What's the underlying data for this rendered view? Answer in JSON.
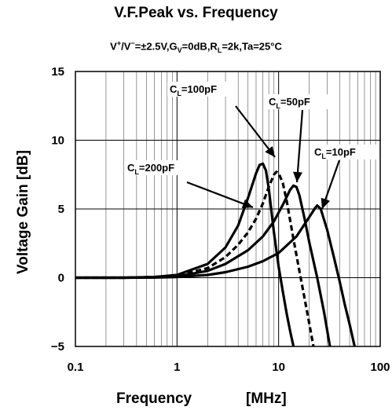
{
  "chart_data": {
    "type": "line",
    "title": "V.F.Peak vs. Frequency",
    "subtitle": "V+/V−=±2.5V,GV=0dB,RL=2k,Ta=25°C",
    "xlabel": "Frequency",
    "xunit": "[MHz]",
    "ylabel": "Voltage Gain [dB]",
    "x_scale": "log",
    "xlim": [
      0.1,
      100
    ],
    "ylim": [
      -5,
      15
    ],
    "x_ticks": [
      "0.1",
      "1",
      "10",
      "100"
    ],
    "y_ticks": [
      "15",
      "10",
      "5",
      "0",
      "−5"
    ],
    "grid": true,
    "series": [
      {
        "name": "CL=200pF",
        "style": "solid",
        "x": [
          0.1,
          0.3,
          0.6,
          1,
          2,
          3,
          4,
          5,
          6,
          6.5,
          7,
          7.5,
          8,
          9,
          10,
          11,
          12,
          13,
          14
        ],
        "y": [
          0,
          0,
          0.05,
          0.2,
          1.0,
          2.2,
          3.8,
          5.8,
          7.6,
          8.2,
          8.3,
          7.8,
          6.5,
          3.3,
          0.8,
          -1.0,
          -2.6,
          -3.9,
          -5
        ]
      },
      {
        "name": "CL=100pF",
        "style": "dashed",
        "x": [
          0.1,
          0.3,
          0.6,
          1,
          2,
          3,
          4,
          5,
          6,
          7,
          8,
          9,
          9.5,
          10,
          11,
          12,
          14,
          16,
          18,
          20,
          22
        ],
        "y": [
          0,
          0,
          0.05,
          0.15,
          0.7,
          1.5,
          2.4,
          3.3,
          4.3,
          5.4,
          6.6,
          7.5,
          7.7,
          7.6,
          6.9,
          5.6,
          2.8,
          0.5,
          -1.5,
          -3.3,
          -5
        ]
      },
      {
        "name": "CL=50pF",
        "style": "solid",
        "x": [
          0.1,
          0.3,
          0.6,
          1,
          2,
          3,
          5,
          7,
          9,
          11,
          13,
          14,
          15,
          16,
          18,
          20,
          24,
          28,
          32
        ],
        "y": [
          0,
          0,
          0.02,
          0.1,
          0.5,
          1.0,
          2.0,
          3.0,
          4.1,
          5.3,
          6.4,
          6.7,
          6.6,
          6.0,
          4.3,
          2.6,
          0.0,
          -2.5,
          -5
        ]
      },
      {
        "name": "CL=10pF",
        "style": "solid",
        "x": [
          0.1,
          0.3,
          0.6,
          1,
          2,
          3,
          5,
          7,
          10,
          15,
          20,
          23,
          24,
          26,
          30,
          35,
          40,
          45,
          50,
          56
        ],
        "y": [
          0,
          0,
          0.01,
          0.05,
          0.2,
          0.4,
          0.8,
          1.2,
          1.8,
          3.0,
          4.4,
          5.1,
          5.25,
          5.0,
          3.5,
          1.5,
          -0.3,
          -2.0,
          -3.4,
          -5
        ]
      }
    ],
    "annotations": [
      {
        "label": "CL=200pF",
        "main": "C",
        "sub": "L",
        "rest": "=200pF"
      },
      {
        "label": "CL=100pF",
        "main": "C",
        "sub": "L",
        "rest": "=100pF"
      },
      {
        "label": "CL=50pF",
        "main": "C",
        "sub": "L",
        "rest": "=50pF"
      },
      {
        "label": "CL=10pF",
        "main": "C",
        "sub": "L",
        "rest": "=10pF"
      }
    ]
  }
}
